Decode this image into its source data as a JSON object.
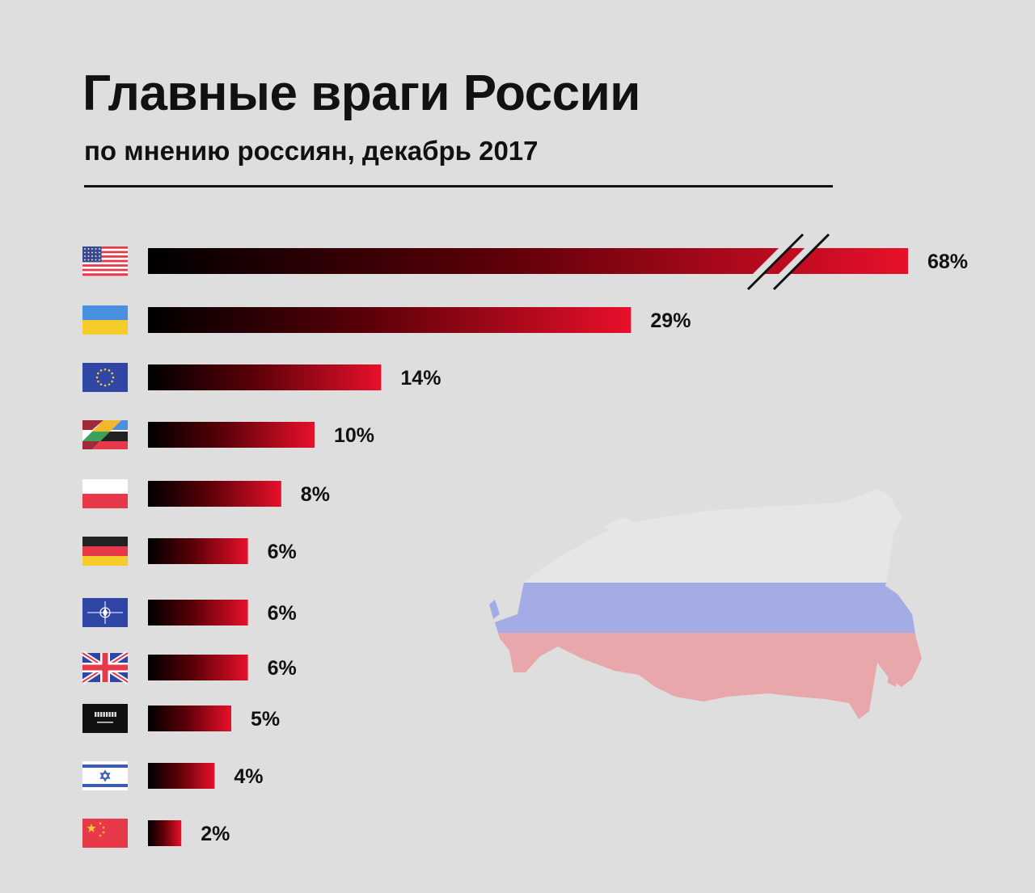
{
  "chart_data": {
    "type": "bar",
    "title": "Главные враги России",
    "subtitle": "по мнению россиян, декабрь 2017",
    "categories": [
      "usa",
      "ukraine",
      "eu",
      "baltic-states",
      "poland",
      "germany",
      "nato",
      "uk",
      "saudi-arabia",
      "israel",
      "china"
    ],
    "values": [
      68,
      29,
      14,
      10,
      8,
      6,
      6,
      6,
      5,
      4,
      2
    ],
    "value_labels": [
      "68%",
      "29%",
      "14%",
      "10%",
      "8%",
      "6%",
      "6%",
      "6%",
      "5%",
      "4%",
      "2%"
    ],
    "axis_break_on_first_bar": true,
    "grid": false,
    "bar_gradient": [
      "#000000",
      "#e8102a"
    ]
  },
  "colors": {
    "background": "#dedede",
    "text": "#111111",
    "bar_start": "#000000",
    "bar_end": "#e8102a",
    "map_top": "#a4ace6",
    "map_bottom": "#e8a7aa",
    "map_north": "#e6e6e6"
  }
}
